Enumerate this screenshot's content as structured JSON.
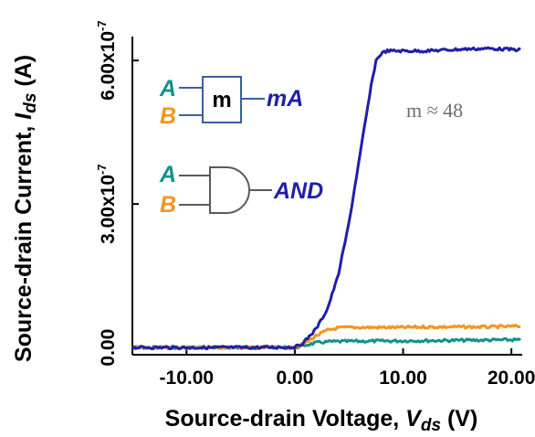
{
  "colors": {
    "mA": "#1f1fa8",
    "AND": "#f7941d",
    "A": "#14918a",
    "B": "#f7941d",
    "gate_stroke": "#5a5a5a",
    "box_stroke": "#3a5fa0"
  },
  "chart_data": {
    "type": "line",
    "title": "",
    "xlabel_prefix": "Source-drain Voltage, ",
    "xlabel_sym": "V",
    "xlabel_sub": "ds",
    "xlabel_unit": " (V)",
    "ylabel_prefix": "Source-drain Current, ",
    "ylabel_sym": "I",
    "ylabel_sub": "ds",
    "ylabel_unit": " (A)",
    "xlim": [
      -15.0,
      21.0
    ],
    "ylim": [
      -1.5e-08,
      6.5e-07
    ],
    "x_ticks": [
      {
        "value": -10.0,
        "label": "-10.00"
      },
      {
        "value": 0.0,
        "label": "0.00"
      },
      {
        "value": 10.0,
        "label": "10.00"
      },
      {
        "value": 20.0,
        "label": "20.00"
      }
    ],
    "y_ticks": [
      {
        "value": 0.0,
        "mant": "0.00",
        "exp": ""
      },
      {
        "value": 3e-07,
        "mant": "3.00x10",
        "exp": "-7"
      },
      {
        "value": 6e-07,
        "mant": "6.00x10",
        "exp": "-7"
      }
    ],
    "grid": false,
    "series": [
      {
        "name": "mA",
        "color": "#1f1fa8",
        "x": [
          -15,
          -10,
          -5,
          0,
          0.5,
          1,
          2,
          3,
          4,
          5,
          5.5,
          6,
          6.5,
          7,
          7.5,
          8,
          8.5,
          10,
          12,
          14,
          16,
          18,
          20,
          21
        ],
        "y": [
          0.0,
          0.0,
          0.0,
          1e-09,
          5e-09,
          1.5e-08,
          4e-08,
          8e-08,
          1.5e-07,
          2.6e-07,
          3.3e-07,
          4e-07,
          4.7e-07,
          5.4e-07,
          6e-07,
          6.15e-07,
          6.2e-07,
          6.2e-07,
          6.2e-07,
          6.22e-07,
          6.24e-07,
          6.25e-07,
          6.23e-07,
          6.22e-07
        ]
      },
      {
        "name": "AND",
        "color": "#f7941d",
        "x": [
          -15,
          -10,
          -5,
          0,
          1,
          2,
          3,
          4,
          5,
          8,
          10,
          12,
          15,
          18,
          20,
          21
        ],
        "y": [
          0.0,
          0.0,
          0.0,
          0.0,
          1e-08,
          2.5e-08,
          3.6e-08,
          4.1e-08,
          4.2e-08,
          4.2e-08,
          4.2e-08,
          4.3e-08,
          4.3e-08,
          4.3e-08,
          4.4e-08,
          4.5e-08
        ]
      },
      {
        "name": "",
        "color": "#14918a",
        "x": [
          -15,
          -10,
          -5,
          0,
          1,
          2,
          3,
          5,
          10,
          15,
          20,
          21
        ],
        "y": [
          0.0,
          0.0,
          0.0,
          0.0,
          5e-09,
          1e-08,
          1.2e-08,
          1.3e-08,
          1.4e-08,
          1.5e-08,
          1.6e-08,
          1.6e-08
        ]
      }
    ],
    "annotations": {
      "ratio": "m ≈ 48",
      "mA_block": {
        "input_a": "A",
        "input_b": "B",
        "box": "m",
        "output": "mA"
      },
      "and_gate": {
        "input_a": "A",
        "input_b": "B",
        "output": "AND"
      }
    }
  }
}
